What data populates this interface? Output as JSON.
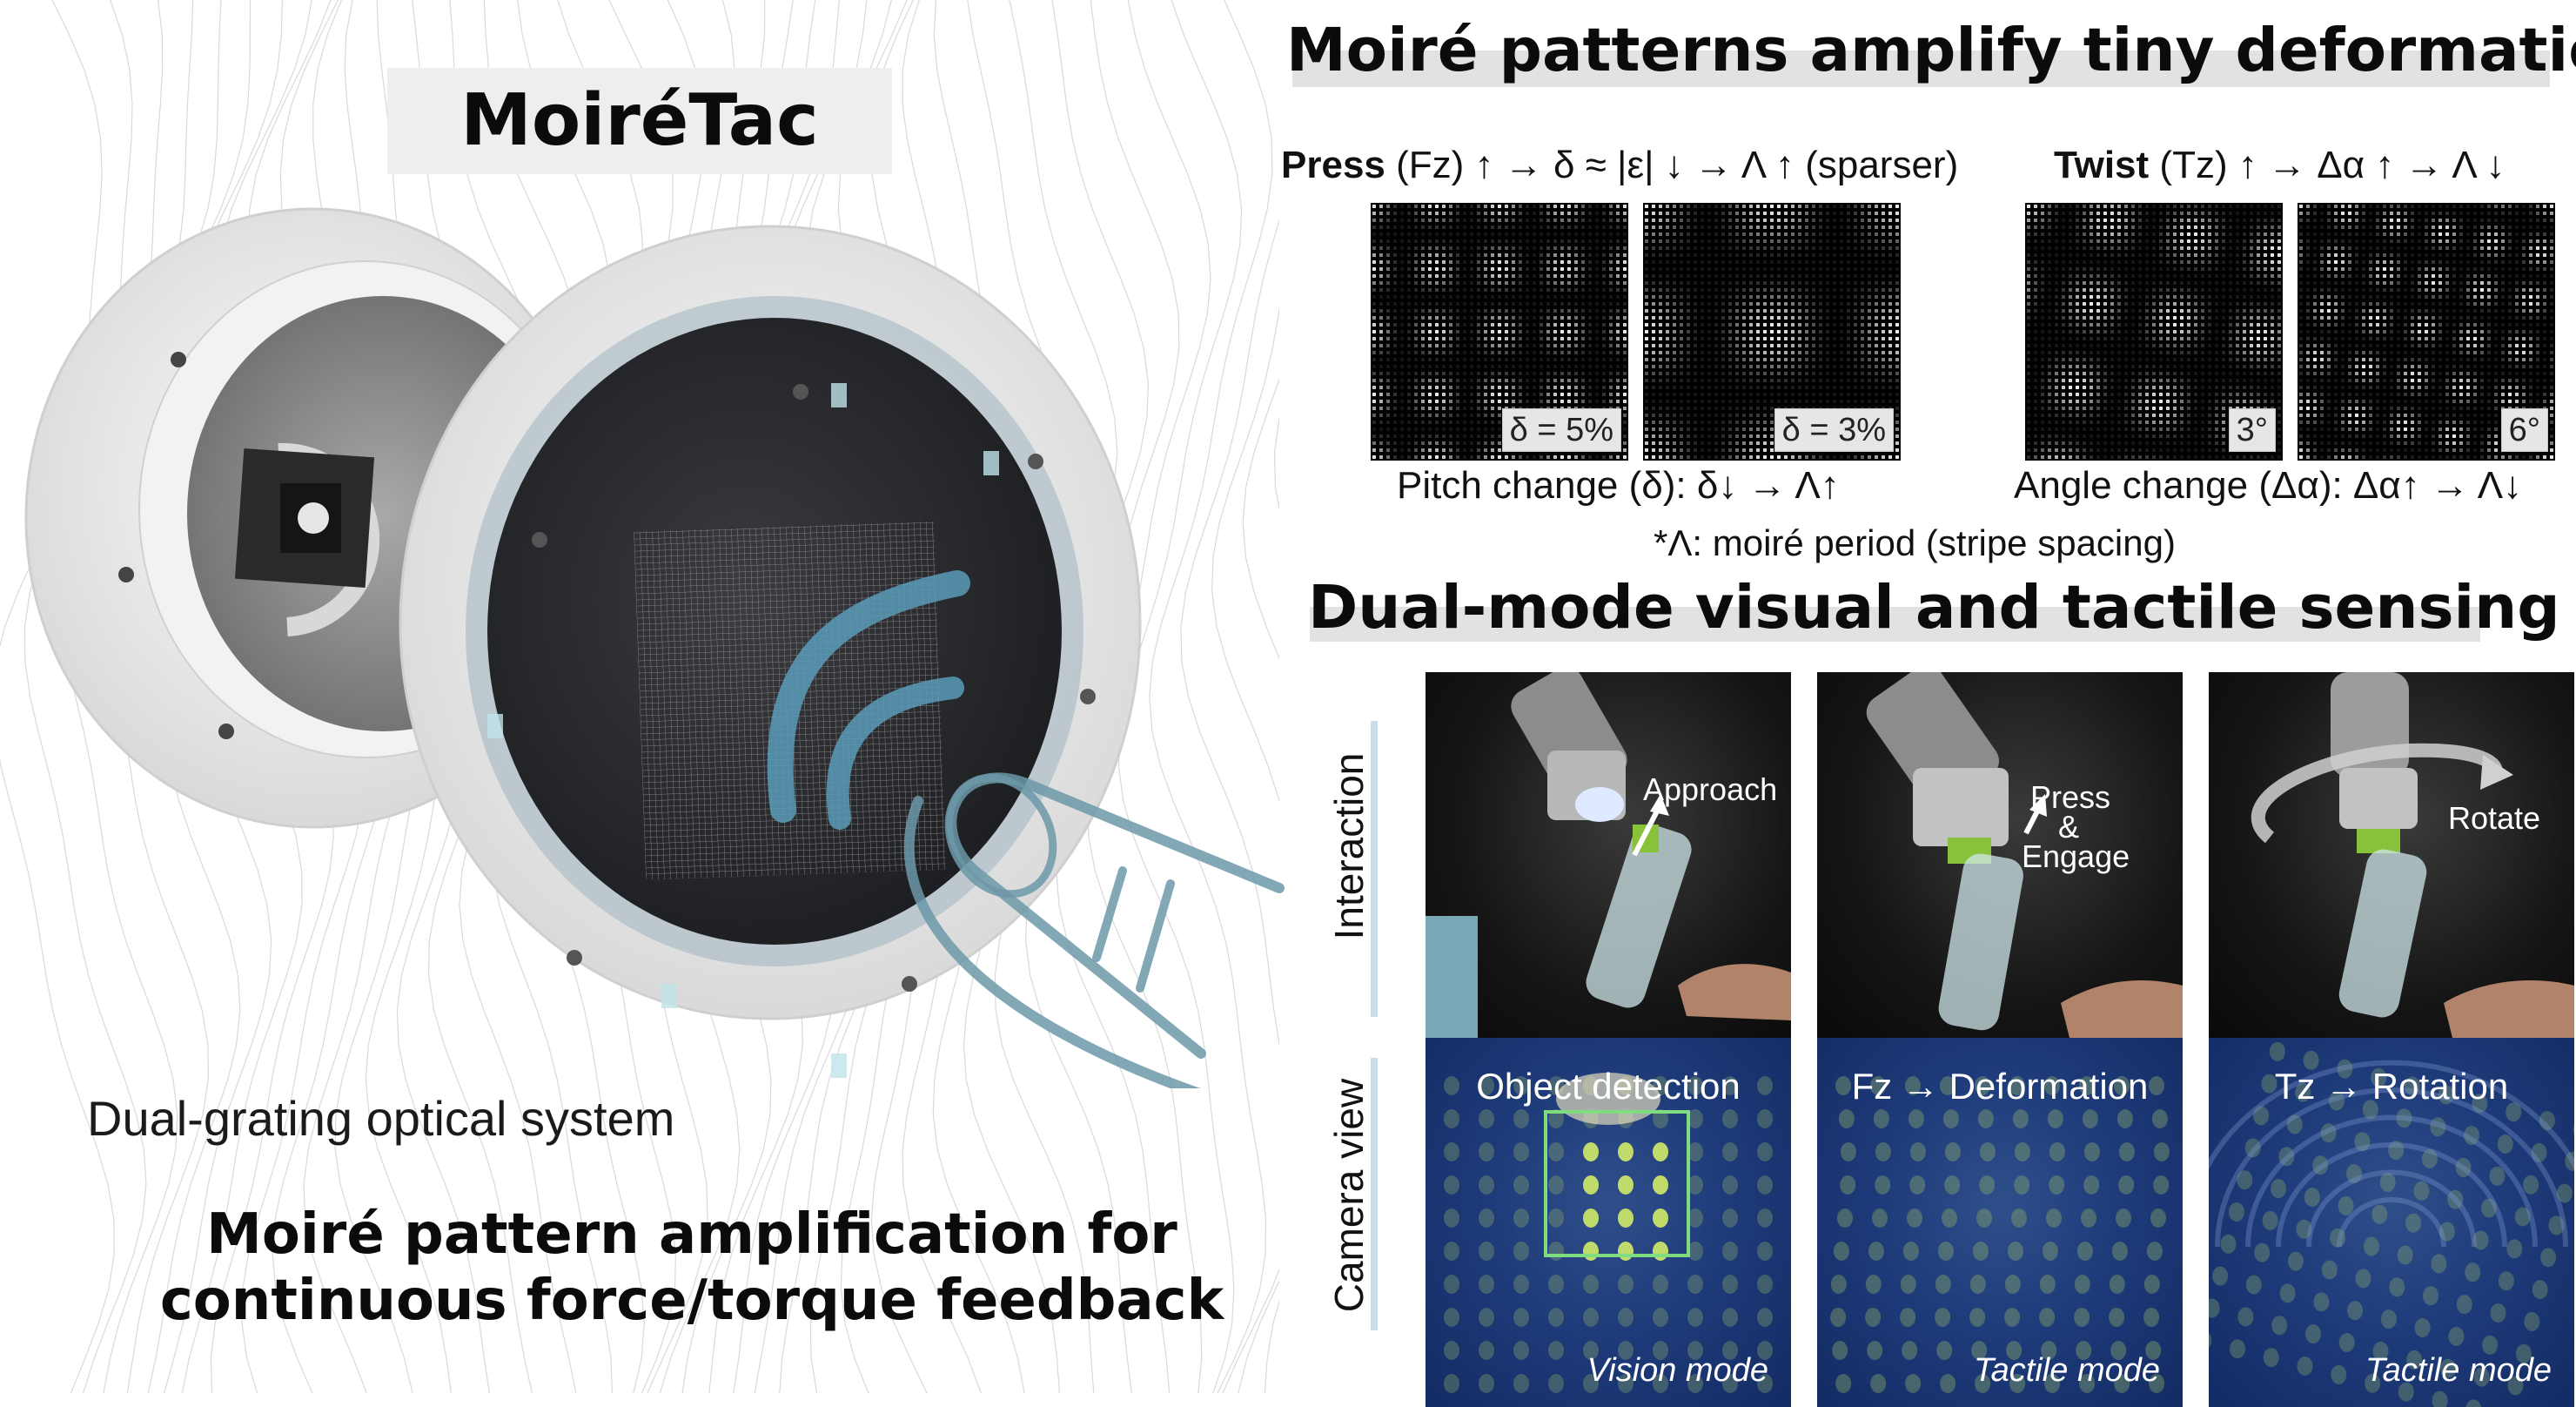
{
  "left": {
    "title": "MoiréTac",
    "subsystem_label": "Dual-grating optical system",
    "tagline_line1": "Moiré pattern amplification for",
    "tagline_line2": "continuous force/torque feedback"
  },
  "moire": {
    "title": "Moiré patterns amplify tiny deformations",
    "press": {
      "label": "Press",
      "formula": " (Fz) ↑ → δ ≈ |ε| ↓ → Λ ↑ (sparser)"
    },
    "twist": {
      "label": "Twist",
      "formula": " (Tz) ↑ → Δα ↑ → Λ ↓"
    },
    "patterns": [
      {
        "badge": "δ = 5%"
      },
      {
        "badge": "δ = 3%"
      },
      {
        "badge": "3°"
      },
      {
        "badge": "6°"
      }
    ],
    "pitch_caption": "Pitch change (δ): δ↓ → Λ↑",
    "angle_caption": "Angle change (Δα): Δα↑ → Λ↓",
    "note": "*Λ: moiré period (stripe spacing)"
  },
  "sensing": {
    "title": "Dual-mode visual and tactile sensing",
    "row_labels": {
      "interaction": "Interaction",
      "camera": "Camera view"
    },
    "interaction": [
      {
        "line1": "Approach"
      },
      {
        "line1": "Press",
        "line2": "&",
        "line3": "Engage"
      },
      {
        "line1": "Rotate"
      }
    ],
    "camera": [
      {
        "title": "Object detection",
        "mode": "Vision mode"
      },
      {
        "title": "Fz → Deformation",
        "mode": "Tactile mode"
      },
      {
        "title": "Tz → Rotation",
        "mode": "Tactile mode"
      }
    ]
  },
  "colors": {
    "accent_arc": "#5a9bb8",
    "detection_box": "#7fdc7f",
    "row_bar": "#c7dde7",
    "title_bar": "#e2e2e2"
  }
}
